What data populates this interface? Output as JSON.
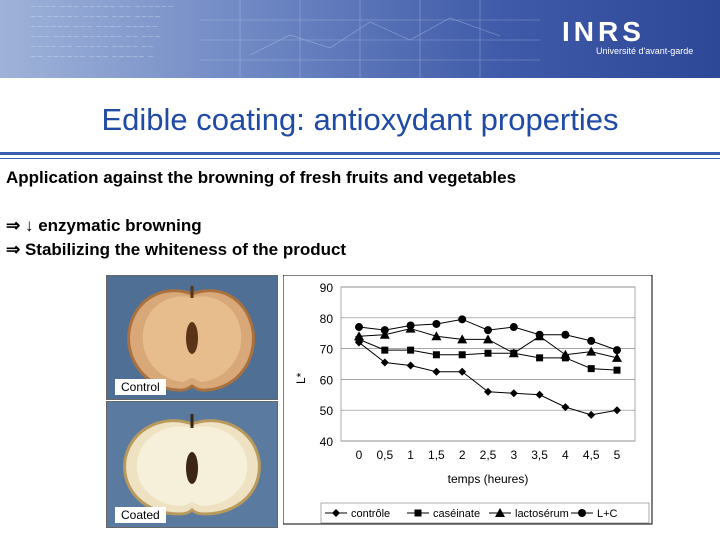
{
  "header": {
    "logo_text": "INRS",
    "logo_subtext": "Université d'avant-garde",
    "banner_color": "#3f5aa8"
  },
  "slide": {
    "title": "Edible coating: antioxydant properties",
    "subtitle": "Application against the browning of fresh fruits and vegetables",
    "bullets": [
      "⇒ ↓ enzymatic browning",
      "⇒ Stabilizing the whiteness of the product"
    ],
    "title_color": "#1f4aa6"
  },
  "photos": [
    {
      "caption": "Control",
      "icon": "apple-half-browned"
    },
    {
      "caption": "Coated",
      "icon": "apple-half-white"
    }
  ],
  "chart_data": {
    "type": "line",
    "title": "",
    "xlabel": "temps (heures)",
    "ylabel": "L*",
    "x": [
      0,
      0.5,
      1,
      1.5,
      2,
      2.5,
      3,
      3.5,
      4,
      4.5,
      5
    ],
    "x_tick_labels": [
      "0",
      "0,5",
      "1",
      "1,5",
      "2",
      "2,5",
      "3",
      "3,5",
      "4",
      "4,5",
      "5"
    ],
    "ylim": [
      40,
      90
    ],
    "y_ticks": [
      40,
      50,
      60,
      70,
      80,
      90
    ],
    "grid": "horizontal",
    "legend_position": "bottom",
    "series": [
      {
        "name": "contrôle",
        "marker": "diamond",
        "values": [
          72,
          65.5,
          64.5,
          62.5,
          62.5,
          56,
          55.5,
          55,
          51,
          48.5,
          50
        ]
      },
      {
        "name": "caséinate",
        "marker": "square",
        "values": [
          73,
          69.5,
          69.5,
          68,
          68,
          68.5,
          68.5,
          67,
          67,
          63.5,
          63
        ]
      },
      {
        "name": "lactosérum",
        "marker": "triangle",
        "values": [
          74,
          74.5,
          76.5,
          74,
          73,
          73,
          68.5,
          74,
          68,
          69,
          67
        ]
      },
      {
        "name": "L+C",
        "marker": "circle",
        "values": [
          77,
          76,
          77.5,
          78,
          79.5,
          76,
          77,
          74.5,
          74.5,
          72.5,
          69.5
        ]
      }
    ]
  }
}
